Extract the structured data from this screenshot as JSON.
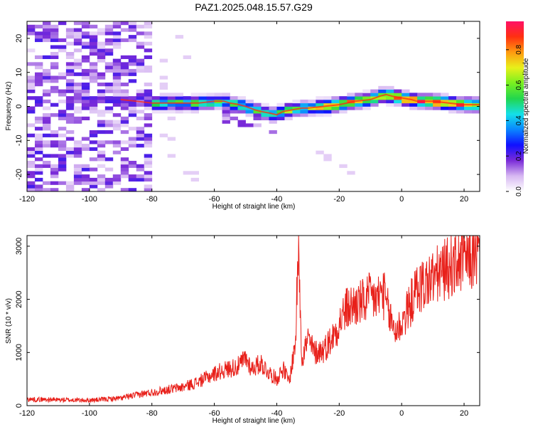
{
  "chart_data": [
    {
      "type": "heatmap",
      "title": "PAZ1.2025.048.15.57.G29",
      "xlabel": "Height of straight line (km)",
      "ylabel": "Frequency (Hz)",
      "xlim": [
        -120,
        25
      ],
      "ylim": [
        -25,
        25
      ],
      "x_ticks": [
        -120,
        -100,
        -80,
        -60,
        -40,
        -20,
        0,
        20
      ],
      "y_ticks": [
        -20,
        -10,
        0,
        10,
        20
      ],
      "colorbar": {
        "label": "Normalized spectral amplitude",
        "range": [
          0,
          0.96
        ],
        "ticks": [
          0.0,
          0.2,
          0.4,
          0.6,
          0.8
        ],
        "tick_labels": [
          "0.0",
          "0.2",
          "0.4",
          "0.6",
          "0.8"
        ],
        "colormap": "rainbow",
        "colors": [
          "#ffffff",
          "#d7b8f2",
          "#7a2bd8",
          "#1010ff",
          "#0a86ff",
          "#14e0e8",
          "#22d64e",
          "#78f020",
          "#e8f01a",
          "#ff9a10",
          "#ff3010",
          "#ff1066"
        ]
      },
      "ridge_line": {
        "x": [
          -90,
          -85,
          -80,
          -75,
          -70,
          -65,
          -60,
          -57,
          -55,
          -52,
          -50,
          -47,
          -45,
          -42,
          -40,
          -38,
          -35,
          -32,
          -30,
          -25,
          -20,
          -15,
          -10,
          -7,
          -5,
          -3,
          0,
          3,
          5,
          10,
          15,
          20,
          25
        ],
        "frequency": [
          2,
          1.5,
          1,
          1,
          1,
          1,
          1.5,
          1.5,
          1,
          0.5,
          0,
          -1,
          -1.5,
          -2,
          -2.5,
          -1.5,
          -1,
          -0.5,
          -0.5,
          0,
          0.5,
          1.5,
          2,
          3,
          3.5,
          3,
          2.5,
          2,
          1.5,
          1.5,
          1,
          0.5,
          0.5
        ]
      }
    },
    {
      "type": "line",
      "xlabel": "Height of straight line (km)",
      "ylabel": "SNR (10 * v/v)",
      "xlim": [
        -120,
        25
      ],
      "ylim": [
        0,
        3200
      ],
      "x_ticks": [
        -120,
        -100,
        -80,
        -60,
        -40,
        -20,
        0,
        20
      ],
      "y_ticks": [
        0,
        1000,
        2000,
        3000
      ],
      "line_color": "#e8201a",
      "series": [
        {
          "x": [
            -120,
            -110,
            -100,
            -90,
            -85,
            -80,
            -75,
            -70,
            -65,
            -60,
            -58,
            -55,
            -52,
            -50,
            -48,
            -45,
            -43,
            -40,
            -38,
            -36,
            -34,
            -33,
            -32,
            -30,
            -28,
            -25,
            -22,
            -20,
            -18,
            -15,
            -12,
            -10,
            -8,
            -6,
            -4,
            -2,
            0,
            2,
            5,
            10,
            15,
            20,
            25
          ],
          "y": [
            120,
            110,
            100,
            140,
            200,
            250,
            300,
            350,
            450,
            600,
            650,
            700,
            750,
            900,
            700,
            800,
            650,
            500,
            700,
            450,
            1200,
            3100,
            900,
            1250,
            1000,
            1050,
            1300,
            1550,
            1800,
            1900,
            1950,
            2050,
            2000,
            2150,
            1700,
            1400,
            1550,
            1800,
            2200,
            2400,
            2600,
            2750,
            2850
          ]
        }
      ]
    }
  ]
}
